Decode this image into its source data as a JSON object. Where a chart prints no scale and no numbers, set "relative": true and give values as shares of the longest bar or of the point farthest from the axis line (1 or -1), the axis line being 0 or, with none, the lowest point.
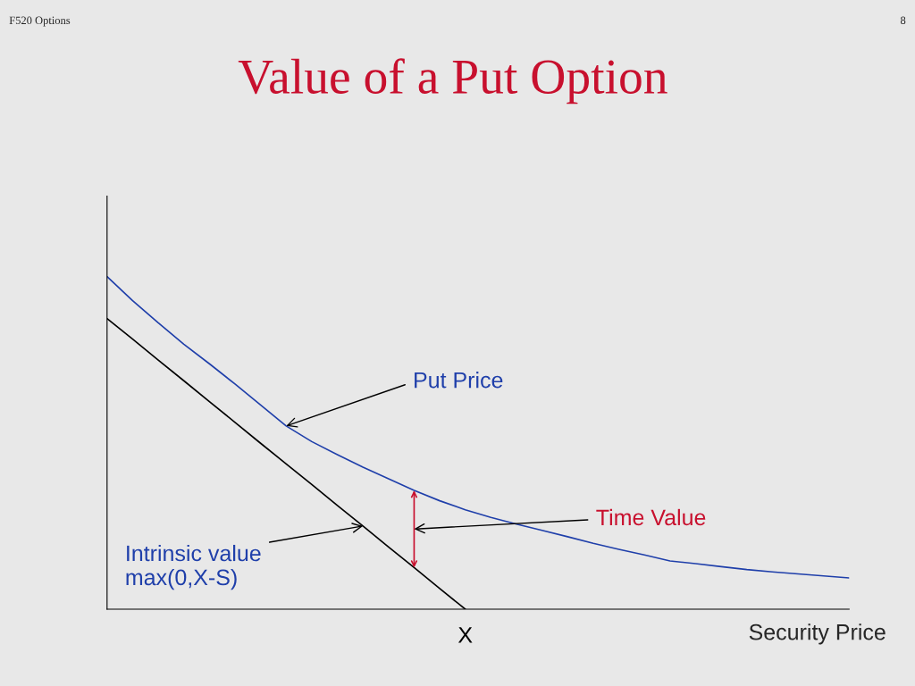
{
  "chart_data": {
    "type": "line",
    "title": "Value of a Put Option",
    "xlabel": "Security Price",
    "relative": true,
    "categories": [
      null,
      null,
      null,
      null,
      null,
      null,
      null,
      null,
      null,
      null,
      null,
      null,
      null,
      null,
      null,
      null,
      null,
      null,
      null,
      null,
      null,
      null,
      null,
      null,
      null,
      null,
      null,
      null,
      null,
      null
    ],
    "series": [
      {
        "color": "#1f3faa",
        "values": [
          1.0,
          0.928,
          0.861,
          0.797,
          0.738,
          0.677,
          0.614,
          0.551,
          0.504,
          0.465,
          0.427,
          0.392,
          0.357,
          0.326,
          0.299,
          0.276,
          0.256,
          0.237,
          0.218,
          0.198,
          0.18,
          0.163,
          0.145,
          0.137,
          0.128,
          0.119,
          0.112,
          0.106,
          0.1,
          0.094
        ]
      },
      {
        "color": "#000000",
        "values": [
          0.874,
          0.812,
          0.749,
          0.687,
          0.624,
          0.562,
          0.499,
          0.437,
          0.375,
          0.312,
          0.25,
          0.187,
          0.125,
          0.062,
          0,
          null,
          null,
          null,
          null,
          null,
          null,
          null,
          null,
          null,
          null,
          null,
          null,
          null,
          null,
          null
        ]
      }
    ],
    "annotations": [
      "Put Price",
      "Time Value",
      "Intrinsic value\nmax(0,X-S)",
      "X",
      "F520 Options",
      "8"
    ]
  }
}
